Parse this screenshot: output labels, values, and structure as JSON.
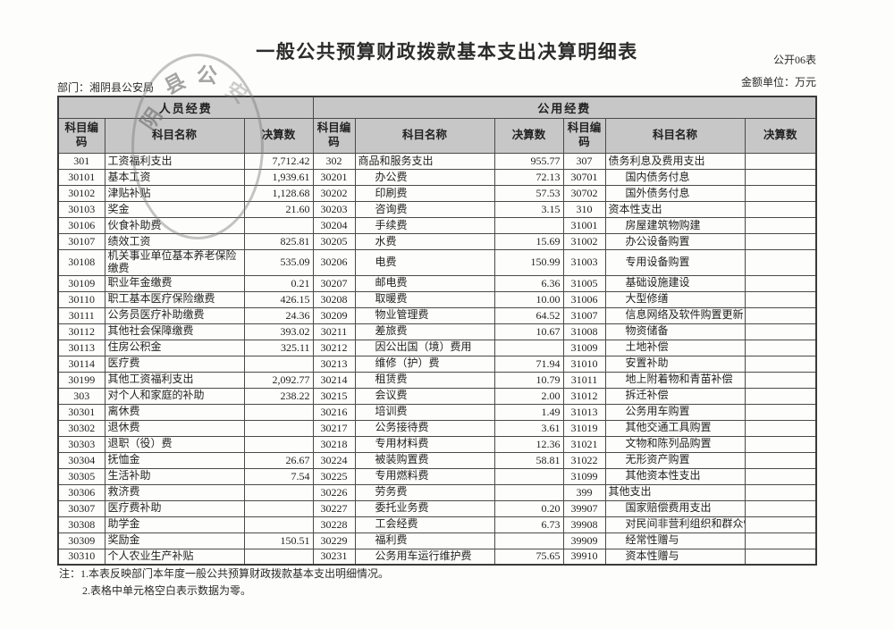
{
  "title": "一般公共预算财政拨款基本支出决算明细表",
  "meta": {
    "form_no": "公开06表",
    "unit": "金额单位：万元",
    "department": "部门：湘阴县公安局"
  },
  "stamp": {
    "arc_chars": [
      "阴",
      "县",
      "公",
      "安"
    ]
  },
  "table": {
    "group_headers": {
      "personnel": "人员经费",
      "public": "公用经费"
    },
    "column_headers": {
      "code": "科目编码",
      "name": "科目名称",
      "amount": "决算数"
    },
    "rows": [
      [
        "301",
        "工资福利支出",
        "7,712.42",
        "302",
        "商品和服务支出",
        "955.77",
        "307",
        "债务利息及费用支出",
        ""
      ],
      [
        "30101",
        "基本工资",
        "1,939.61",
        "30201",
        "办公费",
        "72.13",
        "30701",
        "国内债务付息",
        ""
      ],
      [
        "30102",
        "津贴补贴",
        "1,128.68",
        "30202",
        "印刷费",
        "57.53",
        "30702",
        "国外债务付息",
        ""
      ],
      [
        "30103",
        "奖金",
        "21.60",
        "30203",
        "咨询费",
        "3.15",
        "310",
        "资本性支出",
        ""
      ],
      [
        "30106",
        "伙食补助费",
        "",
        "30204",
        "手续费",
        "",
        "31001",
        "房屋建筑物购建",
        ""
      ],
      [
        "30107",
        "绩效工资",
        "825.81",
        "30205",
        "水费",
        "15.69",
        "31002",
        "办公设备购置",
        ""
      ],
      [
        "30108",
        "机关事业单位基本养老保险缴费",
        "535.09",
        "30206",
        "电费",
        "150.99",
        "31003",
        "专用设备购置",
        ""
      ],
      [
        "30109",
        "职业年金缴费",
        "0.21",
        "30207",
        "邮电费",
        "6.36",
        "31005",
        "基础设施建设",
        ""
      ],
      [
        "30110",
        "职工基本医疗保险缴费",
        "426.15",
        "30208",
        "取暖费",
        "10.00",
        "31006",
        "大型修缮",
        ""
      ],
      [
        "30111",
        "公务员医疗补助缴费",
        "24.36",
        "30209",
        "物业管理费",
        "64.52",
        "31007",
        "信息网络及软件购置更新",
        ""
      ],
      [
        "30112",
        "其他社会保障缴费",
        "393.02",
        "30211",
        "差旅费",
        "10.67",
        "31008",
        "物资储备",
        ""
      ],
      [
        "30113",
        "住房公积金",
        "325.11",
        "30212",
        "因公出国（境）费用",
        "",
        "31009",
        "土地补偿",
        ""
      ],
      [
        "30114",
        "医疗费",
        "",
        "30213",
        "维修（护）费",
        "71.94",
        "31010",
        "安置补助",
        ""
      ],
      [
        "30199",
        "其他工资福利支出",
        "2,092.77",
        "30214",
        "租赁费",
        "10.79",
        "31011",
        "地上附着物和青苗补偿",
        ""
      ],
      [
        "303",
        "对个人和家庭的补助",
        "238.22",
        "30215",
        "会议费",
        "2.00",
        "31012",
        "拆迁补偿",
        ""
      ],
      [
        "30301",
        "离休费",
        "",
        "30216",
        "培训费",
        "1.49",
        "31013",
        "公务用车购置",
        ""
      ],
      [
        "30302",
        "退休费",
        "",
        "30217",
        "公务接待费",
        "3.61",
        "31019",
        "其他交通工具购置",
        ""
      ],
      [
        "30303",
        "退职（役）费",
        "",
        "30218",
        "专用材料费",
        "12.36",
        "31021",
        "文物和陈列品购置",
        ""
      ],
      [
        "30304",
        "抚恤金",
        "26.67",
        "30224",
        "被装购置费",
        "58.81",
        "31022",
        "无形资产购置",
        ""
      ],
      [
        "30305",
        "生活补助",
        "7.54",
        "30225",
        "专用燃料费",
        "",
        "31099",
        "其他资本性支出",
        ""
      ],
      [
        "30306",
        "救济费",
        "",
        "30226",
        "劳务费",
        "",
        "399",
        "其他支出",
        ""
      ],
      [
        "30307",
        "医疗费补助",
        "",
        "30227",
        "委托业务费",
        "0.20",
        "39907",
        "国家赔偿费用支出",
        ""
      ],
      [
        "30308",
        "助学金",
        "",
        "30228",
        "工会经费",
        "6.73",
        "39908",
        "对民间非营利组织和群众性自",
        ""
      ],
      [
        "30309",
        "奖励金",
        "150.51",
        "30229",
        "福利费",
        "",
        "39909",
        "经常性赠与",
        ""
      ],
      [
        "30310",
        "个人农业生产补贴",
        "",
        "30231",
        "公务用车运行维护费",
        "75.65",
        "39910",
        "资本性赠与",
        ""
      ]
    ]
  },
  "notes": {
    "line1": "注：1.本表反映部门本年度一般公共预算财政拨款基本支出明细情况。",
    "line2": "2.表格中单元格空白表示数据为零。"
  }
}
